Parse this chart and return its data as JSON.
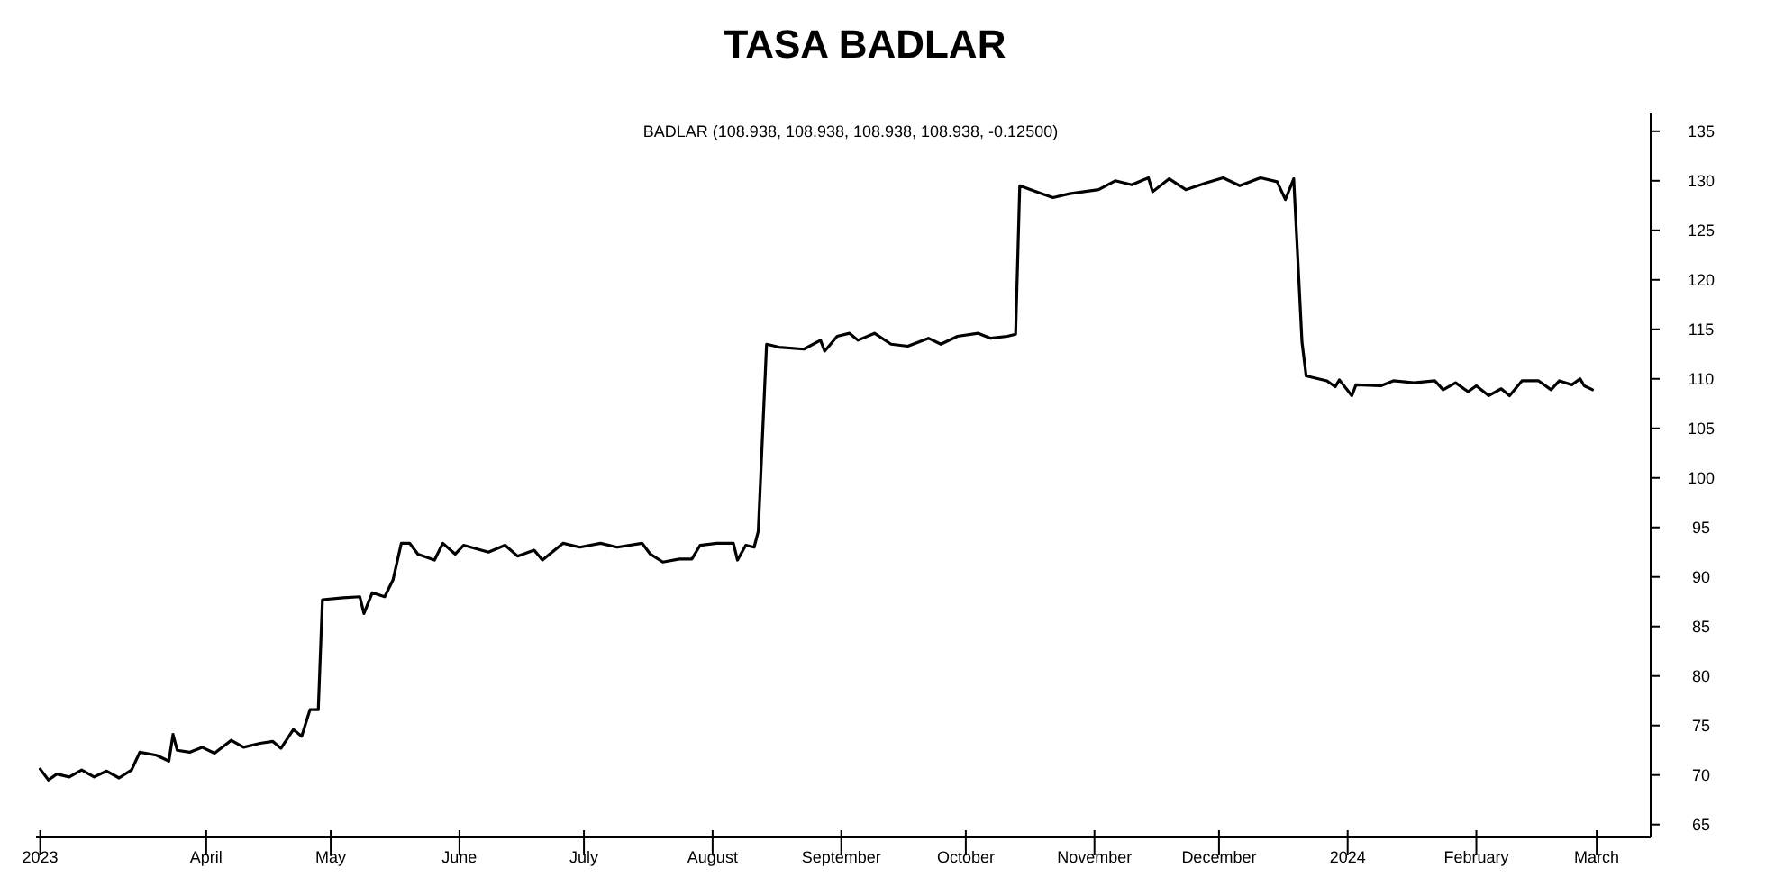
{
  "chart_data": {
    "type": "line",
    "title": "TASA BADLAR",
    "subtitle": "BADLAR (108.938, 108.938, 108.938, 108.938, -0.12500)",
    "x": [
      "2023-02-20",
      "2023-02-22",
      "2023-02-24",
      "2023-02-27",
      "2023-03-02",
      "2023-03-05",
      "2023-03-08",
      "2023-03-11",
      "2023-03-14",
      "2023-03-16",
      "2023-03-20",
      "2023-03-23",
      "2023-03-24",
      "2023-03-25",
      "2023-03-28",
      "2023-03-31",
      "2023-04-03",
      "2023-04-07",
      "2023-04-10",
      "2023-04-14",
      "2023-04-17",
      "2023-04-19",
      "2023-04-22",
      "2023-04-24",
      "2023-04-26",
      "2023-04-28",
      "2023-04-29",
      "2023-05-04",
      "2023-05-08",
      "2023-05-09",
      "2023-05-11",
      "2023-05-14",
      "2023-05-16",
      "2023-05-18",
      "2023-05-20",
      "2023-05-22",
      "2023-05-26",
      "2023-05-28",
      "2023-05-31",
      "2023-06-02",
      "2023-06-08",
      "2023-06-12",
      "2023-06-15",
      "2023-06-19",
      "2023-06-21",
      "2023-06-26",
      "2023-06-30",
      "2023-07-05",
      "2023-07-09",
      "2023-07-15",
      "2023-07-17",
      "2023-07-20",
      "2023-07-24",
      "2023-07-27",
      "2023-07-29",
      "2023-08-02",
      "2023-08-06",
      "2023-08-07",
      "2023-08-09",
      "2023-08-11",
      "2023-08-12",
      "2023-08-14",
      "2023-08-17",
      "2023-08-23",
      "2023-08-27",
      "2023-08-28",
      "2023-08-31",
      "2023-09-03",
      "2023-09-05",
      "2023-09-09",
      "2023-09-13",
      "2023-09-17",
      "2023-09-22",
      "2023-09-25",
      "2023-09-29",
      "2023-10-04",
      "2023-10-07",
      "2023-10-11",
      "2023-10-13",
      "2023-10-14",
      "2023-10-18",
      "2023-10-22",
      "2023-10-26",
      "2023-11-02",
      "2023-11-06",
      "2023-11-10",
      "2023-11-14",
      "2023-11-15",
      "2023-11-19",
      "2023-11-23",
      "2023-11-28",
      "2023-12-02",
      "2023-12-06",
      "2023-12-11",
      "2023-12-15",
      "2023-12-17",
      "2023-12-19",
      "2023-12-20",
      "2023-12-21",
      "2023-12-22",
      "2023-12-27",
      "2023-12-29",
      "2023-12-30",
      "2024-01-02",
      "2024-01-03",
      "2024-01-09",
      "2024-01-12",
      "2024-01-17",
      "2024-01-22",
      "2024-01-24",
      "2024-01-27",
      "2024-01-30",
      "2024-02-01",
      "2024-02-04",
      "2024-02-07",
      "2024-02-09",
      "2024-02-12",
      "2024-02-16",
      "2024-02-19",
      "2024-02-21",
      "2024-02-24",
      "2024-02-26",
      "2024-02-27",
      "2024-02-29"
    ],
    "series": [
      {
        "color": "#000000",
        "values": [
          70.6,
          69.5,
          70.1,
          69.8,
          70.5,
          69.8,
          70.4,
          69.7,
          70.5,
          72.3,
          72.0,
          71.4,
          74.1,
          72.5,
          72.3,
          72.8,
          72.2,
          73.5,
          72.8,
          73.2,
          73.4,
          72.7,
          74.6,
          73.9,
          76.6,
          76.6,
          87.7,
          87.9,
          88.0,
          86.3,
          88.4,
          88.0,
          89.7,
          93.4,
          93.4,
          92.3,
          91.7,
          93.4,
          92.3,
          93.2,
          92.5,
          93.2,
          92.1,
          92.7,
          91.7,
          93.4,
          93.0,
          93.4,
          93.0,
          93.4,
          92.3,
          91.5,
          91.8,
          91.8,
          93.2,
          93.4,
          93.4,
          91.7,
          93.2,
          93.0,
          94.6,
          113.5,
          113.2,
          113.0,
          113.9,
          112.8,
          114.3,
          114.6,
          113.9,
          114.6,
          113.5,
          113.3,
          114.1,
          113.5,
          114.3,
          114.6,
          114.1,
          114.3,
          114.5,
          129.5,
          128.9,
          128.3,
          128.7,
          129.1,
          130.0,
          129.6,
          130.3,
          128.9,
          130.2,
          129.1,
          129.8,
          130.3,
          129.5,
          130.3,
          129.9,
          128.1,
          130.2,
          122.0,
          113.7,
          110.3,
          109.8,
          109.2,
          109.9,
          108.3,
          109.4,
          109.3,
          109.8,
          109.6,
          109.8,
          108.9,
          109.6,
          108.7,
          109.3,
          108.3,
          109.0,
          108.3,
          109.8,
          109.8,
          108.9,
          109.8,
          109.4,
          110.0,
          109.3,
          108.9
        ]
      }
    ],
    "xlim": [
      "2023-02-19",
      "2024-03-14"
    ],
    "xticks": [
      {
        "value": "2023-02-20",
        "label": "2023"
      },
      {
        "value": "2023-04-01",
        "label": "April"
      },
      {
        "value": "2023-05-01",
        "label": "May"
      },
      {
        "value": "2023-06-01",
        "label": "June"
      },
      {
        "value": "2023-07-01",
        "label": "July"
      },
      {
        "value": "2023-08-01",
        "label": "August"
      },
      {
        "value": "2023-09-01",
        "label": "September"
      },
      {
        "value": "2023-10-01",
        "label": "October"
      },
      {
        "value": "2023-11-01",
        "label": "November"
      },
      {
        "value": "2023-12-01",
        "label": "December"
      },
      {
        "value": "2024-01-01",
        "label": "2024"
      },
      {
        "value": "2024-02-01",
        "label": "February"
      },
      {
        "value": "2024-03-01",
        "label": "March"
      }
    ],
    "ylim": [
      63.7,
      136.8
    ],
    "yticks": [
      65,
      70,
      75,
      80,
      85,
      90,
      95,
      100,
      105,
      110,
      115,
      120,
      125,
      130,
      135
    ],
    "grid": false,
    "marker": "none",
    "line_style": "solid"
  }
}
